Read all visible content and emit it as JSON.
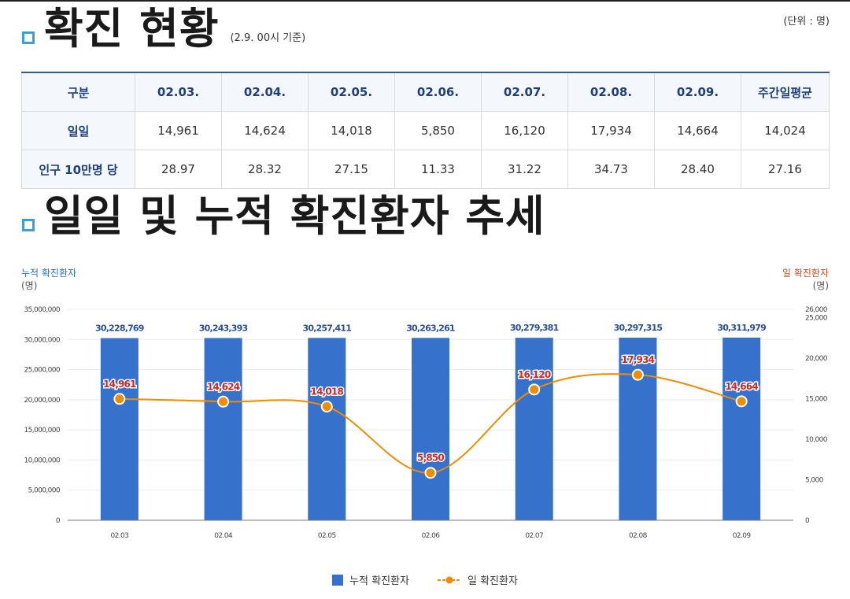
{
  "header": {
    "title": "확진 현황",
    "basis": "(2.9. 00시 기준)",
    "unit": "(단위 : 명)"
  },
  "table": {
    "columns": [
      "구분",
      "02.03.",
      "02.04.",
      "02.05.",
      "02.06.",
      "02.07.",
      "02.08.",
      "02.09.",
      "주간일평균"
    ],
    "rows": [
      {
        "label": "일일",
        "values": [
          "14,961",
          "14,624",
          "14,018",
          "5,850",
          "16,120",
          "17,934",
          "14,664",
          "14,024"
        ]
      },
      {
        "label": "인구 10만명 당",
        "values": [
          "28.97",
          "28.32",
          "27.15",
          "11.33",
          "31.22",
          "34.73",
          "28.40",
          "27.16"
        ]
      }
    ]
  },
  "section2": {
    "title": "일일 및 누적 확진환자 추세"
  },
  "chart_data": {
    "type": "bar+line",
    "categories": [
      "02.03",
      "02.04",
      "02.05",
      "02.06",
      "02.07",
      "02.08",
      "02.09"
    ],
    "series": [
      {
        "name": "누적 확진환자",
        "type": "bar",
        "axis": "left",
        "values": [
          30228769,
          30243393,
          30257411,
          30263261,
          30279381,
          30297315,
          30311979
        ],
        "labels": [
          "30,228,769",
          "30,243,393",
          "30,257,411",
          "30,263,261",
          "30,279,381",
          "30,297,315",
          "30,311,979"
        ],
        "color": "#3671cc"
      },
      {
        "name": "일 확진환자",
        "type": "line",
        "axis": "right",
        "values": [
          14961,
          14624,
          14018,
          5850,
          16120,
          17934,
          14664
        ],
        "labels": [
          "14,961",
          "14,624",
          "14,018",
          "5,850",
          "16,120",
          "17,934",
          "14,664"
        ],
        "color": "#f08c00"
      }
    ],
    "left_axis": {
      "title": "누적 확진환자",
      "unit": "(명)",
      "range": [
        0,
        35000000
      ],
      "ticks": [
        0,
        5000000,
        10000000,
        15000000,
        20000000,
        25000000,
        30000000,
        35000000
      ],
      "tick_labels": [
        "0",
        "5,000,000",
        "10,000,000",
        "15,000,000",
        "20,000,000",
        "25,000,000",
        "30,000,000",
        "35,000,000"
      ]
    },
    "right_axis": {
      "title": "일 확진환자",
      "unit": "(명)",
      "range": [
        0,
        26000
      ],
      "ticks": [
        0,
        5000,
        10000,
        15000,
        20000,
        25000,
        26000
      ],
      "tick_labels": [
        "0",
        "5,000",
        "10,000",
        "15,000",
        "20,000",
        "25,000",
        "26,000"
      ]
    },
    "colors": {
      "bar": "#3671cc",
      "line": "#f08c00",
      "bar_label": "#2a4f96",
      "line_label": "#c62828",
      "left_title": "#2a6fbd",
      "right_title": "#c8501e"
    },
    "legend": [
      "누적 확진환자",
      "일 확진환자"
    ]
  }
}
